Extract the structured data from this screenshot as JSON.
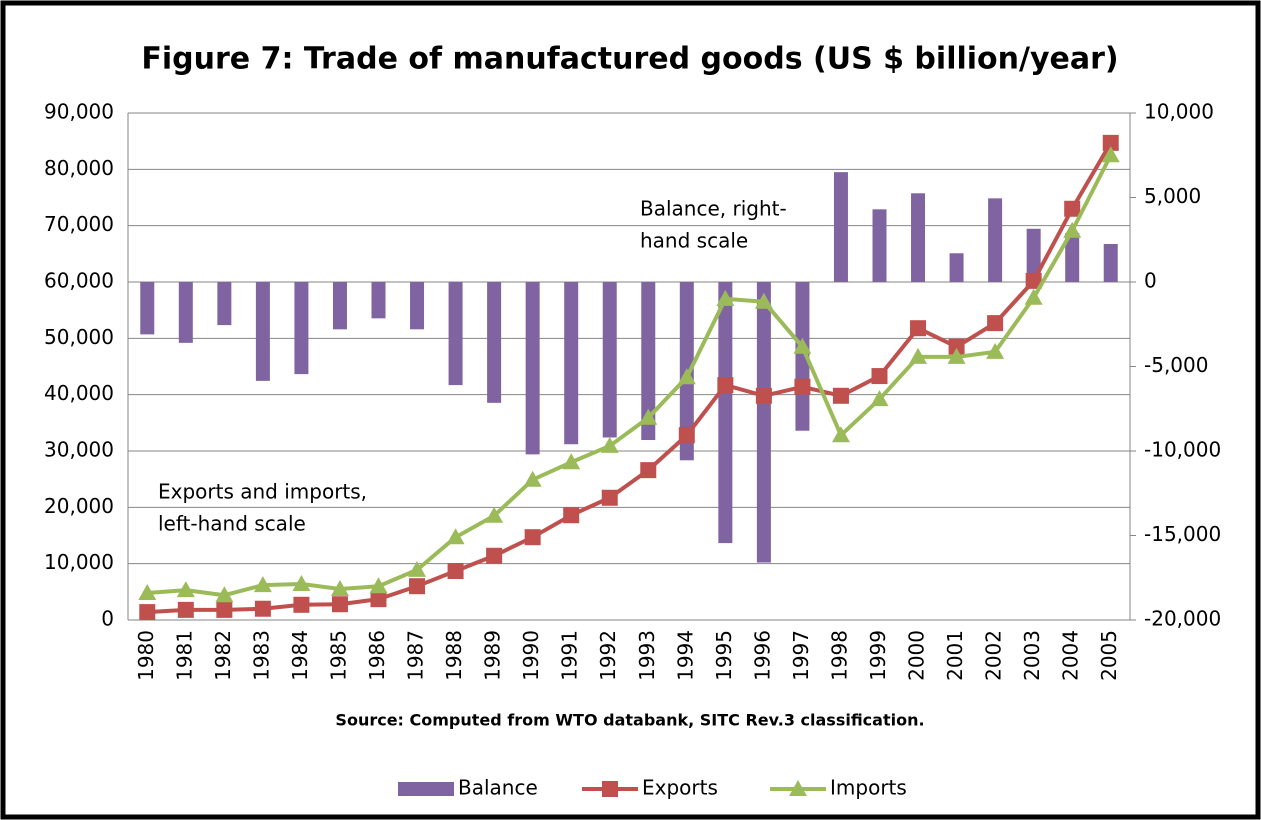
{
  "chart_data": {
    "type": "bar-line",
    "title": "Figure 7: Trade of manufactured  goods (US $ billion/year)",
    "source": "Source: Computed from WTO databank, SITC Rev.3 classification.",
    "annotations": [
      {
        "lines": [
          "Balance, right-",
          "hand scale"
        ]
      },
      {
        "lines": [
          "Exports and imports,",
          "left-hand scale"
        ]
      }
    ],
    "categories": [
      "1980",
      "1981",
      "1982",
      "1983",
      "1984",
      "1985",
      "1986",
      "1987",
      "1988",
      "1989",
      "1990",
      "1991",
      "1992",
      "1993",
      "1994",
      "1995",
      "1996",
      "1997",
      "1998",
      "1999",
      "2000",
      "2001",
      "2002",
      "2003",
      "2004",
      "2005"
    ],
    "series": [
      {
        "name": "Balance",
        "type": "bar",
        "axis": "y2",
        "color": "#8064a2",
        "values": [
          -3100,
          -3600,
          -2550,
          -5850,
          -5450,
          -2800,
          -2150,
          -2800,
          -6100,
          -7150,
          -10200,
          -9600,
          -9200,
          -9350,
          -10550,
          -15450,
          -16600,
          -8800,
          6500,
          4300,
          5250,
          1700,
          4950,
          3150,
          2900,
          2250
        ]
      },
      {
        "name": "Exports",
        "type": "line",
        "marker": "square",
        "color": "#c0504d",
        "values": [
          1400,
          1800,
          1800,
          2000,
          2700,
          2800,
          3700,
          6000,
          8700,
          11400,
          14700,
          18600,
          21700,
          26600,
          32800,
          41700,
          39800,
          41400,
          39800,
          43300,
          51800,
          48500,
          52700,
          60200,
          73000,
          84700
        ]
      },
      {
        "name": "Imports",
        "type": "line",
        "marker": "triangle",
        "color": "#9bbb59",
        "values": [
          4800,
          5300,
          4400,
          6200,
          6400,
          5500,
          6000,
          8900,
          14700,
          18500,
          24900,
          28000,
          30900,
          35900,
          43100,
          57000,
          56500,
          48500,
          32800,
          39200,
          46700,
          46700,
          47600,
          57200,
          69100,
          82500
        ]
      }
    ],
    "ylim": [
      0,
      90000
    ],
    "yticks": [
      0,
      {
        "value": 10000,
        "label": "10,000"
      },
      {
        "value": 20000,
        "label": "20,000"
      },
      {
        "value": 30000,
        "label": "30,000"
      },
      {
        "value": 40000,
        "label": "40,000"
      },
      {
        "value": 50000,
        "label": "50,000"
      },
      {
        "value": 60000,
        "label": "60,000"
      },
      {
        "value": 70000,
        "label": "70,000"
      },
      {
        "value": 80000,
        "label": "80,000"
      },
      {
        "value": 90000,
        "label": "90,000"
      }
    ],
    "y2lim": [
      -20000,
      10000
    ],
    "y2ticks": [
      {
        "value": -20000,
        "label": "-20,000"
      },
      {
        "value": -15000,
        "label": "-15,000"
      },
      {
        "value": -10000,
        "label": "-10,000"
      },
      {
        "value": -5000,
        "label": "-5,000"
      },
      0,
      {
        "value": 5000,
        "label": "5,000"
      },
      {
        "value": 10000,
        "label": "10,000"
      }
    ],
    "y2_negative_tick_color": "#ff0000",
    "grid": true,
    "legend": "bottom"
  }
}
